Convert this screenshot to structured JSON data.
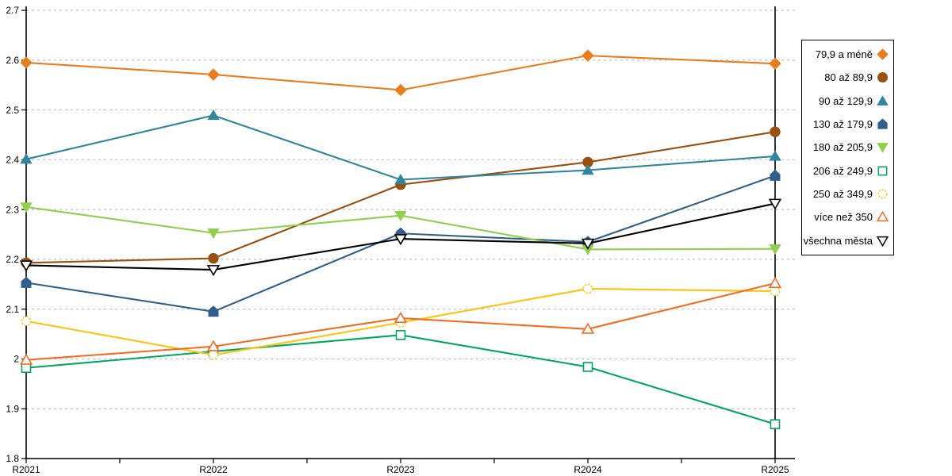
{
  "chart_data": {
    "type": "line",
    "title": "",
    "xlabel": "",
    "ylabel": "",
    "x_categories": [
      "R2021",
      "R2022",
      "R2023",
      "R2024",
      "R2025"
    ],
    "ylim": [
      1.8,
      2.7
    ],
    "ytick_step": 0.1,
    "y_tick_labels": [
      "2.7",
      "2.6",
      "2.5",
      "2.4",
      "2.3",
      "2.2",
      "2.1",
      "2",
      "1.9",
      "1.8"
    ],
    "grid": "horizontal-dashed",
    "legend_position": "right-outside-boxed",
    "series": [
      {
        "name": "79,9 a méně",
        "marker": "diamond",
        "filled": true,
        "dashed_marker": false,
        "color": "#E87D1E",
        "values": [
          2.595,
          2.571,
          2.54,
          2.609,
          2.593
        ]
      },
      {
        "name": "80 až 89,9",
        "marker": "circle",
        "filled": true,
        "dashed_marker": false,
        "color": "#99500F",
        "values": [
          2.193,
          2.202,
          2.35,
          2.395,
          2.456
        ]
      },
      {
        "name": "90 až 129,9",
        "marker": "triangle-up",
        "filled": true,
        "dashed_marker": false,
        "color": "#31859C",
        "values": [
          2.401,
          2.489,
          2.36,
          2.379,
          2.407
        ]
      },
      {
        "name": "130 až 179,9",
        "marker": "pentagon",
        "filled": true,
        "dashed_marker": false,
        "color": "#305F8C",
        "values": [
          2.153,
          2.095,
          2.252,
          2.235,
          2.368
        ]
      },
      {
        "name": "180 až 205,9",
        "marker": "triangle-down",
        "filled": true,
        "dashed_marker": false,
        "color": "#92CE4E",
        "values": [
          2.305,
          2.253,
          2.288,
          2.22,
          2.221
        ]
      },
      {
        "name": "206 až 249,9",
        "marker": "square",
        "filled": false,
        "dashed_marker": false,
        "color": "#00A65C",
        "values": [
          1.982,
          2.015,
          2.048,
          1.984,
          1.869
        ]
      },
      {
        "name": "250 až 349,9",
        "marker": "circle",
        "filled": false,
        "dashed_marker": true,
        "color": "#FFC20E",
        "values": [
          2.076,
          2.008,
          2.073,
          2.141,
          2.136
        ]
      },
      {
        "name": "více než 350",
        "marker": "triangle-up",
        "filled": false,
        "dashed_marker": false,
        "color": "#F26B21",
        "values": [
          1.998,
          2.025,
          2.082,
          2.06,
          2.152
        ]
      },
      {
        "name": "všechna města",
        "marker": "triangle-down",
        "filled": false,
        "dashed_marker": false,
        "color": "#000000",
        "values": [
          2.188,
          2.179,
          2.241,
          2.232,
          2.312
        ]
      }
    ],
    "colors": {
      "background": "#FFFFFF",
      "gridline": "#C0C0C0",
      "axis": "#000000"
    }
  }
}
